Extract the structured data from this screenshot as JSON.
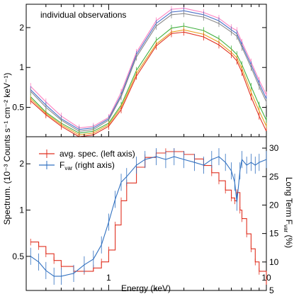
{
  "chart_data": [
    {
      "panel": "top",
      "type": "line",
      "annotation": "individual observations",
      "ylabel": "Counts s⁻¹ cm⁻² keV⁻¹",
      "y_scale": "log",
      "ylim": [
        0.3,
        3.0
      ],
      "xlim": [
        0.3,
        10
      ],
      "yticks": [
        "0.5",
        "1",
        "2"
      ],
      "grid": false,
      "series": [
        {
          "color": "#ff80c0",
          "x": [
            0.32,
            0.4,
            0.5,
            0.65,
            0.8,
            1.0,
            1.2,
            1.5,
            2.0,
            2.5,
            3.0,
            4.0,
            5.0,
            6.0,
            6.5,
            7.0,
            8.0,
            9.0,
            10.0
          ],
          "y": [
            0.72,
            0.55,
            0.43,
            0.35,
            0.36,
            0.42,
            0.65,
            1.3,
            2.25,
            2.75,
            2.8,
            2.6,
            2.35,
            2.0,
            1.9,
            1.55,
            1.1,
            0.8,
            0.62
          ]
        },
        {
          "color": "#4a6fc8",
          "x": [
            0.32,
            0.4,
            0.5,
            0.65,
            0.8,
            1.0,
            1.2,
            1.5,
            2.0,
            2.5,
            3.0,
            4.0,
            5.0,
            6.0,
            6.5,
            7.0,
            8.0,
            9.0,
            10.0
          ],
          "y": [
            0.68,
            0.52,
            0.41,
            0.34,
            0.35,
            0.41,
            0.62,
            1.25,
            2.15,
            2.62,
            2.68,
            2.5,
            2.25,
            1.92,
            1.8,
            1.48,
            1.05,
            0.76,
            0.58
          ]
        },
        {
          "color": "#8a8a8a",
          "x": [
            0.32,
            0.4,
            0.5,
            0.65,
            0.8,
            1.0,
            1.2,
            1.5,
            2.0,
            2.5,
            3.0,
            4.0,
            5.0,
            6.0,
            6.5,
            7.0,
            8.0,
            9.0,
            10.0
          ],
          "y": [
            0.66,
            0.5,
            0.4,
            0.33,
            0.34,
            0.4,
            0.6,
            1.2,
            2.05,
            2.5,
            2.55,
            2.4,
            2.15,
            1.85,
            1.72,
            1.42,
            1.0,
            0.72,
            0.55
          ]
        },
        {
          "color": "#40b040",
          "x": [
            0.32,
            0.4,
            0.5,
            0.65,
            0.8,
            1.0,
            1.2,
            1.5,
            2.0,
            2.5,
            3.0,
            4.0,
            5.0,
            6.0,
            6.5,
            7.0,
            8.0,
            9.0,
            10.0
          ],
          "y": [
            0.6,
            0.46,
            0.38,
            0.32,
            0.33,
            0.38,
            0.52,
            0.95,
            1.6,
            1.98,
            2.05,
            1.9,
            1.65,
            1.38,
            1.25,
            1.05,
            0.72,
            0.52,
            0.4
          ]
        },
        {
          "color": "#e8a020",
          "x": [
            0.32,
            0.4,
            0.5,
            0.65,
            0.8,
            1.0,
            1.2,
            1.5,
            2.0,
            2.5,
            3.0,
            4.0,
            5.0,
            6.0,
            6.5,
            7.0,
            8.0,
            9.0,
            10.0
          ],
          "y": [
            0.58,
            0.45,
            0.37,
            0.31,
            0.32,
            0.37,
            0.5,
            0.9,
            1.5,
            1.85,
            1.92,
            1.78,
            1.55,
            1.3,
            1.18,
            0.98,
            0.65,
            0.47,
            0.36
          ]
        },
        {
          "color": "#e03020",
          "x": [
            0.32,
            0.4,
            0.5,
            0.65,
            0.8,
            1.0,
            1.2,
            1.5,
            2.0,
            2.5,
            3.0,
            4.0,
            5.0,
            6.0,
            6.5,
            7.0,
            8.0,
            9.0,
            10.0
          ],
          "y": [
            0.56,
            0.44,
            0.36,
            0.3,
            0.31,
            0.36,
            0.48,
            0.86,
            1.45,
            1.8,
            1.85,
            1.7,
            1.48,
            1.25,
            1.12,
            0.92,
            0.6,
            0.43,
            0.33
          ]
        }
      ]
    },
    {
      "panel": "bottom",
      "type": "line",
      "xlabel": "Energy (keV)",
      "ylabel_left": "Spectrum.",
      "ylabel_left_unit": "(10⁻³",
      "ylabel_right": "Long Term F",
      "ylabel_right_sub": "var",
      "ylabel_right_unit": "(%)",
      "x_scale": "log",
      "xlim": [
        0.3,
        10
      ],
      "xticks": [
        "1",
        "10"
      ],
      "left_scale": "log",
      "left_ylim": [
        0.3,
        3.0
      ],
      "left_yticks": [
        "0.5",
        "1",
        "2"
      ],
      "right_ylim": [
        5,
        32
      ],
      "right_yticks": [
        "5",
        "10",
        "15",
        "20",
        "25",
        "30"
      ],
      "legend_position": "top-left",
      "grid": false,
      "series": [
        {
          "name": "avg. spec. (left axis)",
          "color": "#e03020",
          "axis": "left",
          "x": [
            0.32,
            0.36,
            0.4,
            0.45,
            0.5,
            0.6,
            0.7,
            0.8,
            0.9,
            1.0,
            1.1,
            1.2,
            1.3,
            1.5,
            1.7,
            2.0,
            2.3,
            2.6,
            3.0,
            3.5,
            4.0,
            4.5,
            5.0,
            5.5,
            6.0,
            6.3,
            6.5,
            6.8,
            7.0,
            7.5,
            8.0,
            8.5,
            9.0,
            10.0
          ],
          "y": [
            0.62,
            0.58,
            0.52,
            0.47,
            0.43,
            0.4,
            0.4,
            0.42,
            0.46,
            0.55,
            0.8,
            1.15,
            1.5,
            1.9,
            2.2,
            2.35,
            2.4,
            2.4,
            2.3,
            2.15,
            1.95,
            1.75,
            1.55,
            1.35,
            1.2,
            1.15,
            1.3,
            1.0,
            0.88,
            0.7,
            0.56,
            0.46,
            0.4,
            0.33
          ]
        },
        {
          "name": "F",
          "name_subscript": "var",
          "name_suffix": " (right axis)",
          "color": "#3070c0",
          "axis": "right",
          "x": [
            0.32,
            0.36,
            0.4,
            0.45,
            0.5,
            0.6,
            0.7,
            0.8,
            0.9,
            1.0,
            1.1,
            1.2,
            1.3,
            1.5,
            1.7,
            2.0,
            2.3,
            2.6,
            3.0,
            3.5,
            4.0,
            4.5,
            5.0,
            5.5,
            6.0,
            6.3,
            6.5,
            6.8,
            7.0,
            7.5,
            8.0,
            8.5,
            9.0,
            10.0
          ],
          "y": [
            11.0,
            10.0,
            8.5,
            7.5,
            7.5,
            8.0,
            9.5,
            10.5,
            13.0,
            17.0,
            21.0,
            24.0,
            25.0,
            27.0,
            28.0,
            28.5,
            28.0,
            28.5,
            28.0,
            27.5,
            27.0,
            28.0,
            28.5,
            27.5,
            26.0,
            24.0,
            20.5,
            26.0,
            28.0,
            27.0,
            27.5,
            27.0,
            27.5,
            28.0
          ]
        }
      ]
    }
  ],
  "legend": [
    {
      "label": "avg. spec. (left axis)",
      "color": "#e03020"
    },
    {
      "label_main": "F",
      "label_sub": "var",
      "label_rest": " (right axis)",
      "color": "#3070c0"
    }
  ]
}
